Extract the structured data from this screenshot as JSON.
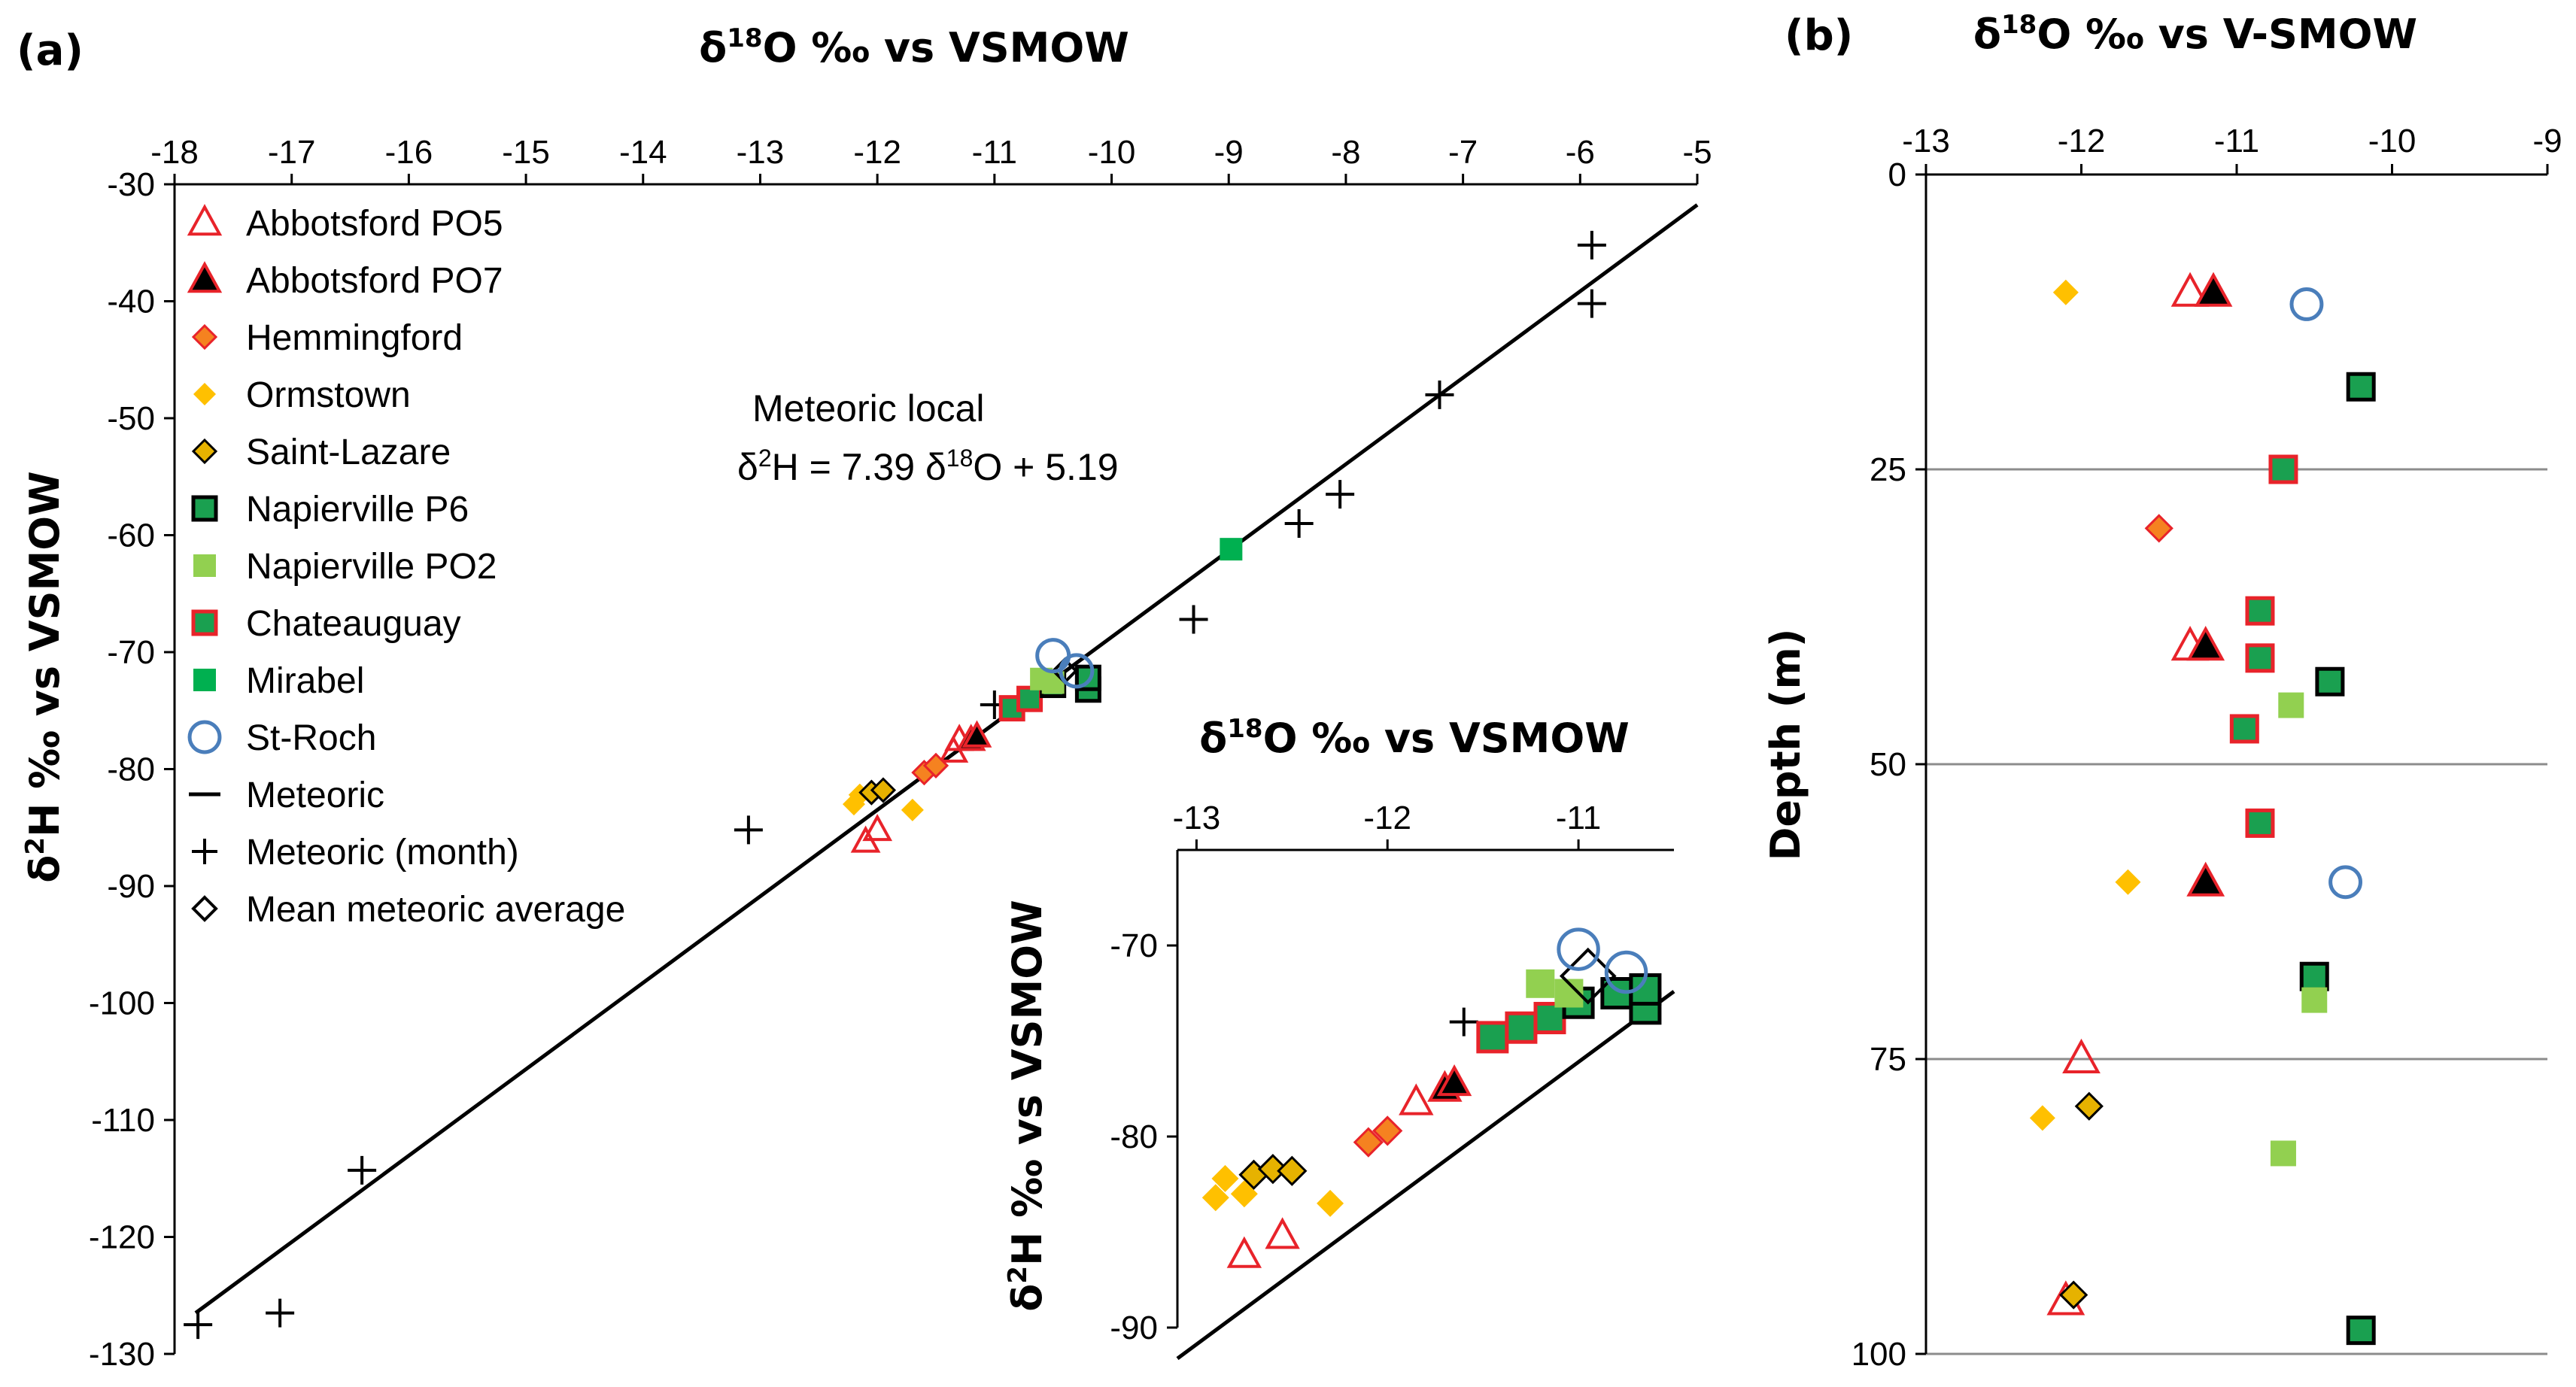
{
  "panel_labels": {
    "a": "(a)",
    "b": "(b)"
  },
  "colors": {
    "red": "#e8232a",
    "orange": "#f58220",
    "yellow": "#ffc000",
    "gold": "#e6b200",
    "darkgreen": "#1aa050",
    "lightgreen": "#92d050",
    "green": "#00b050",
    "blue": "#4a7ebb",
    "black": "#000000"
  },
  "chart_data": [
    {
      "id": "a",
      "type": "scatter",
      "x_title": "δ18O ‰ vs VSMOW",
      "x_title_parts": {
        "pre": "δ",
        "sup": "18",
        "post": "O ‰ vs VSMOW"
      },
      "y_title_parts": {
        "pre": "δ",
        "sup": "2",
        "post": "H  ‰ vs VSMOW"
      },
      "xlim": [
        -18,
        -5
      ],
      "ylim": [
        -130,
        -30
      ],
      "x_ticks": [
        "-18",
        "-17",
        "-16",
        "-15",
        "-14",
        "-13",
        "-12",
        "-11",
        "-10",
        "-9",
        "-8",
        "-7",
        "-6",
        "-5"
      ],
      "y_ticks": [
        "-30",
        "-40",
        "-50",
        "-60",
        "-70",
        "-80",
        "-90",
        "-100",
        "-110",
        "-120",
        "-130"
      ],
      "annotation": {
        "line1": "Meteoric local",
        "line2_parts": {
          "a": "δ",
          "b": "2",
          "c": "H = 7.39 δ",
          "d": "18",
          "e": "O + 5.19"
        }
      },
      "line": {
        "name": "Meteoric",
        "slope": 7.39,
        "intercept": 5.19
      },
      "legend": [
        {
          "label": "Abbotsford PO5",
          "marker": "triangle-open-red"
        },
        {
          "label": "Abbotsford PO7",
          "marker": "triangle-black-red"
        },
        {
          "label": "Hemmingford",
          "marker": "diamond-orange-red"
        },
        {
          "label": "Ormstown",
          "marker": "diamond-yellow"
        },
        {
          "label": "Saint-Lazare",
          "marker": "diamond-gold-black"
        },
        {
          "label": "Napierville P6",
          "marker": "square-green-black"
        },
        {
          "label": "Napierville PO2",
          "marker": "square-lightgreen"
        },
        {
          "label": "Chateauguay",
          "marker": "square-green-red"
        },
        {
          "label": "Mirabel",
          "marker": "square-green"
        },
        {
          "label": "St-Roch",
          "marker": "circle-open-blue"
        },
        {
          "label": "Meteoric",
          "marker": "line"
        },
        {
          "label": " Meteoric (month)",
          "marker": "plus"
        },
        {
          "label": "Mean meteoric average",
          "marker": "diamond-open-black"
        }
      ],
      "series": [
        {
          "name": "Meteoric (month)",
          "marker": "plus",
          "points": [
            [
              -17.8,
              -127.5
            ],
            [
              -17.1,
              -126.5
            ],
            [
              -16.4,
              -114.3
            ],
            [
              -13.1,
              -85.2
            ],
            [
              -11,
              -74.5
            ],
            [
              -9.3,
              -67.2
            ],
            [
              -8.4,
              -59
            ],
            [
              -8.05,
              -56.5
            ],
            [
              -7.2,
              -48
            ],
            [
              -5.9,
              -35.2
            ],
            [
              -5.9,
              -40.2
            ]
          ]
        },
        {
          "name": "Abbotsford PO5",
          "marker": "triangle-open-red",
          "points": [
            [
              -12.1,
              -86.2
            ],
            [
              -12,
              -85.2
            ],
            [
              -11.35,
              -78.5
            ],
            [
              -11.3,
              -77.5
            ]
          ]
        },
        {
          "name": "Abbotsford PO7",
          "marker": "triangle-black-red",
          "points": [
            [
              -11.2,
              -77.5
            ],
            [
              -11.15,
              -77.2
            ]
          ]
        },
        {
          "name": "Hemmingford",
          "marker": "diamond-orange-red",
          "points": [
            [
              -11.6,
              -80.3
            ],
            [
              -11.5,
              -79.7
            ]
          ]
        },
        {
          "name": "Ormstown",
          "marker": "diamond-yellow",
          "points": [
            [
              -12.2,
              -83
            ],
            [
              -12.15,
              -82.2
            ],
            [
              -11.7,
              -83.5
            ]
          ]
        },
        {
          "name": "Saint-Lazare",
          "marker": "diamond-gold-black",
          "points": [
            [
              -12.05,
              -82
            ],
            [
              -11.95,
              -81.8
            ]
          ]
        },
        {
          "name": "Chateauguay",
          "marker": "square-green-red",
          "points": [
            [
              -10.85,
              -74.8
            ],
            [
              -10.7,
              -74
            ]
          ]
        },
        {
          "name": "Napierville P6",
          "marker": "square-green-black",
          "points": [
            [
              -10.5,
              -72.8
            ],
            [
              -10.2,
              -73.2
            ],
            [
              -10.2,
              -72.2
            ]
          ]
        },
        {
          "name": "Napierville PO2",
          "marker": "square-lightgreen",
          "points": [
            [
              -10.6,
              -72.3
            ],
            [
              -10.5,
              -72.6
            ]
          ]
        },
        {
          "name": "Mirabel",
          "marker": "square-green",
          "points": [
            [
              -8.98,
              -61.2
            ]
          ]
        },
        {
          "name": "Mean meteoric average",
          "marker": "diamond-open-black",
          "points": [
            [
              -10.4,
              -71.6
            ]
          ]
        },
        {
          "name": "St-Roch",
          "marker": "circle-open-blue",
          "points": [
            [
              -10.5,
              -70.3
            ],
            [
              -10.3,
              -71.6
            ]
          ]
        }
      ]
    },
    {
      "id": "a-inset",
      "type": "scatter",
      "x_title_parts": {
        "pre": "δ",
        "sup": "18",
        "post": "O ‰ vs VSMOW"
      },
      "y_title_parts": {
        "pre": "δ",
        "sup": "2",
        "post": "H ‰ vs VSMOW"
      },
      "xlim": [
        -13.1,
        -10.5
      ],
      "ylim": [
        -90,
        -65
      ],
      "x_ticks": [
        "-13",
        "-12",
        "-11"
      ],
      "y_ticks": [
        "-70",
        "-80",
        "-90"
      ],
      "series": [
        {
          "name": "Meteoric (month)",
          "marker": "plus",
          "points": [
            [
              -11.6,
              -74
            ]
          ]
        },
        {
          "name": "Abbotsford PO5",
          "marker": "triangle-open-red",
          "points": [
            [
              -12.75,
              -86.2
            ],
            [
              -12.55,
              -85.2
            ],
            [
              -11.85,
              -78.2
            ]
          ]
        },
        {
          "name": "Abbotsford PO7",
          "marker": "triangle-black-red",
          "points": [
            [
              -11.7,
              -77.5
            ],
            [
              -11.65,
              -77.2
            ]
          ]
        },
        {
          "name": "Hemmingford",
          "marker": "diamond-orange-red",
          "points": [
            [
              -12.1,
              -80.3
            ],
            [
              -12.0,
              -79.7
            ]
          ]
        },
        {
          "name": "Ormstown",
          "marker": "diamond-yellow",
          "points": [
            [
              -12.9,
              -83.2
            ],
            [
              -12.85,
              -82.2
            ],
            [
              -12.75,
              -83
            ],
            [
              -12.3,
              -83.5
            ]
          ]
        },
        {
          "name": "Saint-Lazare",
          "marker": "diamond-gold-black",
          "points": [
            [
              -12.7,
              -82
            ],
            [
              -12.6,
              -81.7
            ],
            [
              -12.5,
              -81.8
            ]
          ]
        },
        {
          "name": "Chateauguay",
          "marker": "square-green-red",
          "points": [
            [
              -11.45,
              -74.8
            ],
            [
              -11.3,
              -74.3
            ],
            [
              -11.15,
              -73.8
            ]
          ]
        },
        {
          "name": "Napierville P6",
          "marker": "square-green-black",
          "points": [
            [
              -11,
              -73
            ],
            [
              -10.8,
              -72.5
            ],
            [
              -10.65,
              -73.3
            ],
            [
              -10.65,
              -72.3
            ]
          ]
        },
        {
          "name": "Napierville PO2",
          "marker": "square-lightgreen",
          "points": [
            [
              -11.2,
              -72
            ],
            [
              -11.05,
              -72.5
            ]
          ]
        },
        {
          "name": "Mean meteoric average",
          "marker": "diamond-open-black",
          "points": [
            [
              -10.95,
              -71.6
            ]
          ]
        },
        {
          "name": "St-Roch",
          "marker": "circle-open-blue",
          "points": [
            [
              -11.0,
              -70.2
            ],
            [
              -10.75,
              -71.4
            ]
          ]
        }
      ]
    },
    {
      "id": "b",
      "type": "scatter",
      "x_title_parts": {
        "pre": "δ",
        "sup": "18",
        "post": "O ‰ vs V-SMOW"
      },
      "y_title": "Depth (m)",
      "xlim": [
        -13,
        -9
      ],
      "ylim": [
        0,
        100
      ],
      "x_ticks": [
        "-13",
        "-12",
        "-11",
        "-10",
        "-9"
      ],
      "y_ticks": [
        "0",
        "25",
        "50",
        "75",
        "100"
      ],
      "series": [
        {
          "name": "Ormstown",
          "marker": "diamond-yellow",
          "points": [
            [
              -12.1,
              10
            ],
            [
              -11.7,
              60
            ],
            [
              -12.25,
              80
            ]
          ]
        },
        {
          "name": "Abbotsford PO5",
          "marker": "triangle-open-red",
          "points": [
            [
              -11.3,
              10
            ],
            [
              -11.3,
              40
            ],
            [
              -12,
              75
            ],
            [
              -12.1,
              95.5
            ]
          ]
        },
        {
          "name": "Abbotsford PO7",
          "marker": "triangle-black-red",
          "points": [
            [
              -11.15,
              10
            ],
            [
              -11.2,
              40
            ],
            [
              -11.2,
              60
            ]
          ]
        },
        {
          "name": "St-Roch",
          "marker": "circle-open-blue",
          "points": [
            [
              -10.55,
              11
            ],
            [
              -10.3,
              60
            ]
          ]
        },
        {
          "name": "Napierville P6",
          "marker": "square-green-black",
          "points": [
            [
              -10.2,
              18
            ],
            [
              -10.4,
              43
            ],
            [
              -10.5,
              68
            ],
            [
              -10.2,
              98
            ]
          ]
        },
        {
          "name": "Chateauguay",
          "marker": "square-green-red",
          "points": [
            [
              -10.7,
              25
            ],
            [
              -10.85,
              37
            ],
            [
              -10.85,
              41
            ],
            [
              -10.95,
              47
            ],
            [
              -10.85,
              55
            ]
          ]
        },
        {
          "name": "Hemmingford",
          "marker": "diamond-orange-red",
          "points": [
            [
              -11.5,
              30
            ]
          ]
        },
        {
          "name": "Napierville PO2",
          "marker": "square-lightgreen",
          "points": [
            [
              -10.65,
              45
            ],
            [
              -10.5,
              70
            ],
            [
              -10.7,
              83
            ]
          ]
        },
        {
          "name": "Saint-Lazare",
          "marker": "diamond-gold-black",
          "points": [
            [
              -11.95,
              79
            ],
            [
              -12.05,
              95
            ]
          ]
        }
      ]
    }
  ]
}
